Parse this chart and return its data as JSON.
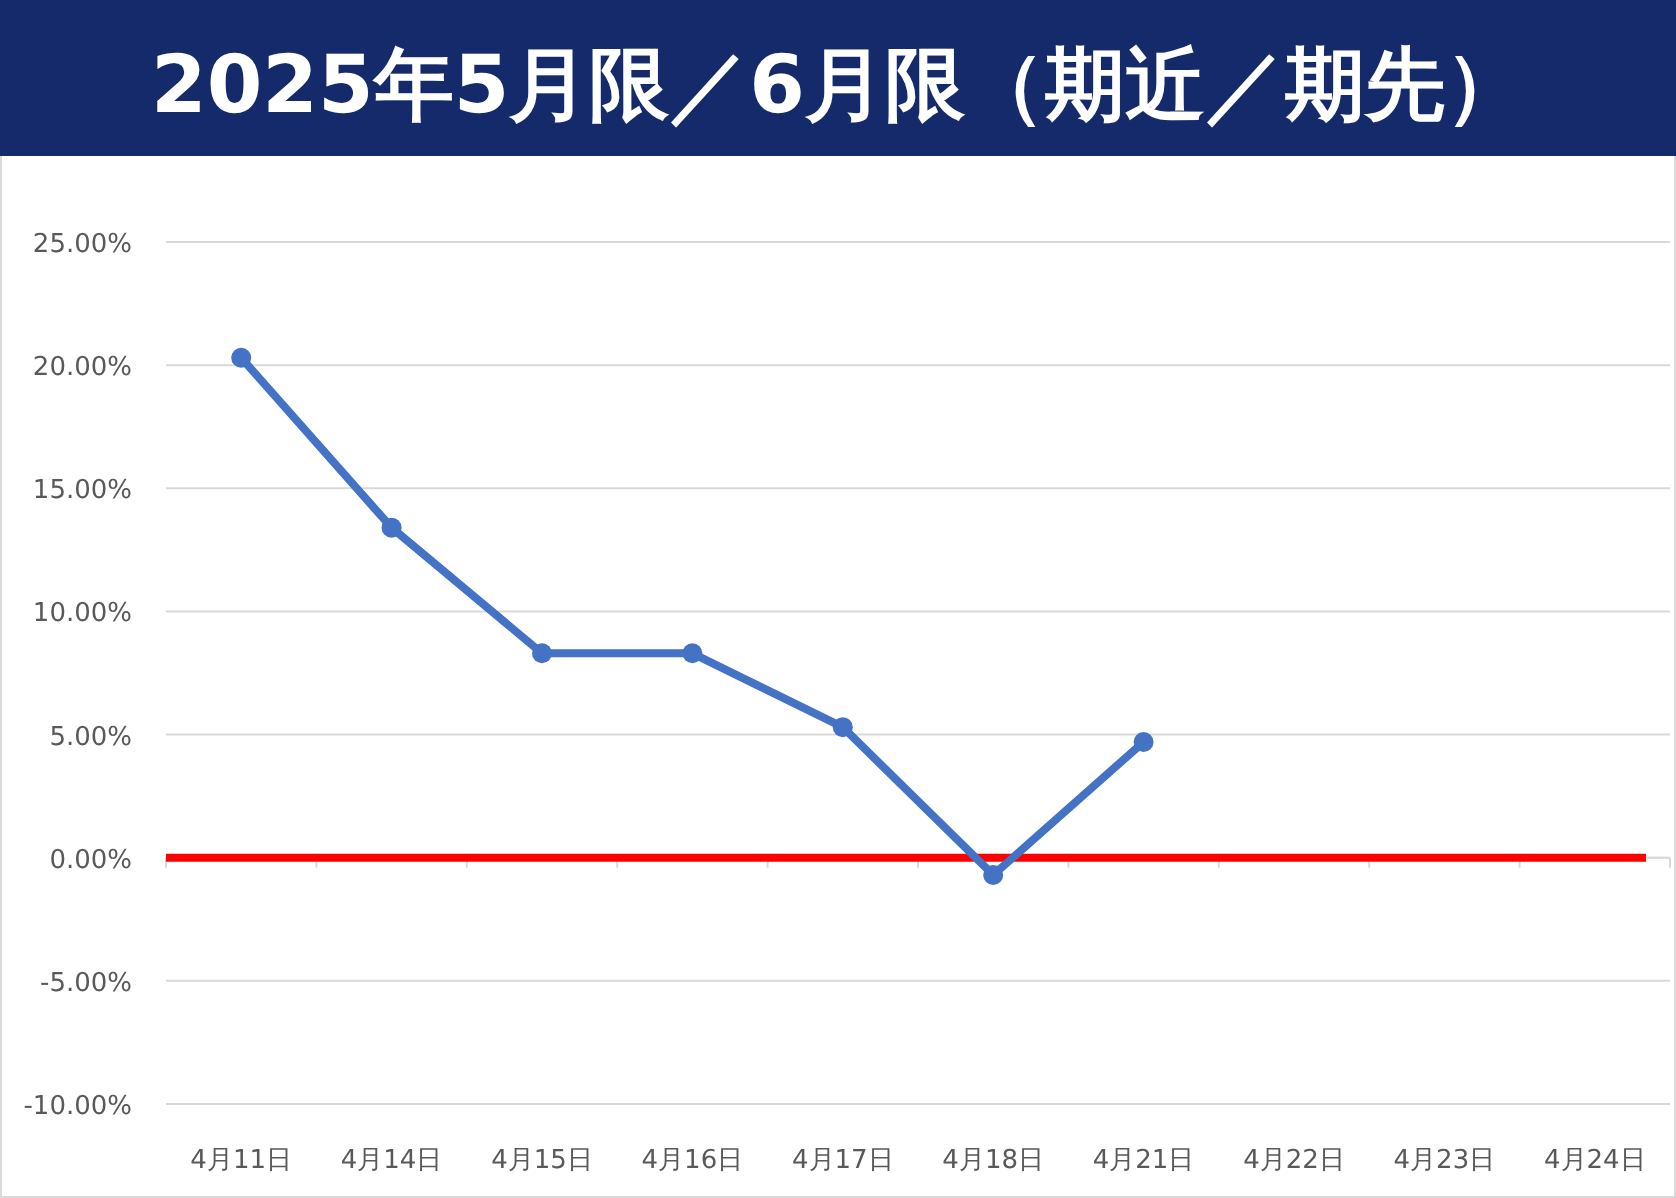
{
  "chart_data": {
    "type": "line",
    "title": "2025年5月限／6月限（期近／期先）",
    "categories": [
      "4月11日",
      "4月14日",
      "4月15日",
      "4月16日",
      "4月17日",
      "4月18日",
      "4月21日",
      "4月22日",
      "4月23日",
      "4月24日"
    ],
    "series": [
      {
        "color": "#4472c4",
        "values": [
          20.3,
          13.4,
          8.3,
          8.3,
          5.3,
          -0.7,
          4.7,
          null,
          null,
          null
        ]
      }
    ],
    "ylim": [
      -10,
      25
    ],
    "yticks": [
      {
        "value": -10,
        "label": "-10.00%"
      },
      {
        "value": -5,
        "label": "-5.00%"
      },
      {
        "value": 0,
        "label": "0.00%"
      },
      {
        "value": 5,
        "label": "5.00%"
      },
      {
        "value": 10,
        "label": "10.00%"
      },
      {
        "value": 15,
        "label": "15.00%"
      },
      {
        "value": 20,
        "label": "20.00%"
      },
      {
        "value": 25,
        "label": "25.00%"
      }
    ],
    "grid": "y",
    "marker": "circle",
    "ref_lines": [
      {
        "axis": "y",
        "value": 0,
        "color": "#ff0000"
      }
    ]
  }
}
